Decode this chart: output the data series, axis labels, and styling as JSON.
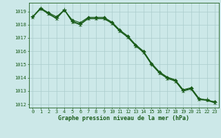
{
  "title": "Graphe pression niveau de la mer (hPa)",
  "background_color": "#cce8e8",
  "grid_color": "#aacccc",
  "line_color": "#1a5c1a",
  "x_values": [
    0,
    1,
    2,
    3,
    4,
    5,
    6,
    7,
    8,
    9,
    10,
    11,
    12,
    13,
    14,
    15,
    16,
    17,
    18,
    19,
    20,
    21,
    22,
    23
  ],
  "series1": [
    1018.6,
    1019.25,
    1018.9,
    1018.6,
    1019.1,
    1018.35,
    1018.15,
    1018.55,
    1018.55,
    1018.55,
    1018.2,
    1017.6,
    1017.15,
    1016.5,
    1016.0,
    1015.1,
    1014.45,
    1014.05,
    1013.85,
    1013.1,
    1013.25,
    1012.45,
    1012.3,
    1012.2
  ],
  "series2": [
    1018.6,
    1019.25,
    1018.85,
    1018.5,
    1019.15,
    1018.25,
    1018.05,
    1018.5,
    1018.5,
    1018.5,
    1018.15,
    1017.55,
    1017.1,
    1016.45,
    1015.95,
    1015.05,
    1014.4,
    1014.0,
    1013.8,
    1013.05,
    1013.2,
    1012.4,
    1012.35,
    1012.15
  ],
  "series3": [
    1018.55,
    1019.2,
    1018.8,
    1018.45,
    1019.1,
    1018.2,
    1018.0,
    1018.45,
    1018.45,
    1018.45,
    1018.1,
    1017.5,
    1017.05,
    1016.4,
    1015.9,
    1015.0,
    1014.35,
    1013.95,
    1013.75,
    1013.0,
    1013.15,
    1012.35,
    1012.3,
    1012.1
  ],
  "ylim_min": 1011.75,
  "ylim_max": 1019.65,
  "yticks": [
    1012,
    1013,
    1014,
    1015,
    1016,
    1017,
    1018,
    1019
  ],
  "xticks": [
    0,
    1,
    2,
    3,
    4,
    5,
    6,
    7,
    8,
    9,
    10,
    11,
    12,
    13,
    14,
    15,
    16,
    17,
    18,
    19,
    20,
    21,
    22,
    23
  ],
  "title_fontsize": 6.0,
  "tick_fontsize": 5.0,
  "marker_size": 2.5,
  "line_width": 0.85
}
